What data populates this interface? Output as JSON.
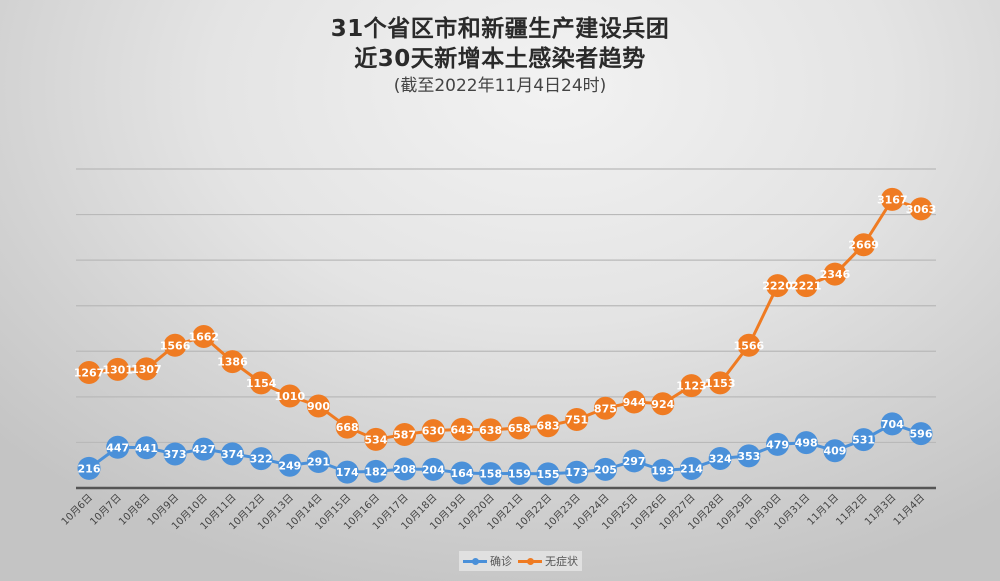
{
  "title": {
    "line1": "31个省区市和新疆生产建设兵团",
    "line2": "近30天新增本土感染者趋势",
    "line3": "(截至2022年11月4日24时)"
  },
  "legend": [
    {
      "name": "确诊",
      "color": "#4a90d9"
    },
    {
      "name": "无症状",
      "color": "#ef7b22"
    }
  ],
  "chart_data": {
    "type": "line",
    "title": "31个省区市和新疆生产建设兵团近30天新增本土感染者趋势",
    "subtitle": "(截至2022年11月4日24时)",
    "xlabel": "",
    "ylabel": "",
    "ylim": [
      0,
      3500
    ],
    "grid": true,
    "gridline_step": 500,
    "y_tick_labels_visible": false,
    "legend_position": "bottom",
    "categories": [
      "10月6日",
      "10月7日",
      "10月8日",
      "10月9日",
      "10月10日",
      "10月11日",
      "10月12日",
      "10月13日",
      "10月14日",
      "10月15日",
      "10月16日",
      "10月17日",
      "10月18日",
      "10月19日",
      "10月20日",
      "10月21日",
      "10月22日",
      "10月23日",
      "10月24日",
      "10月25日",
      "10月26日",
      "10月27日",
      "10月28日",
      "10月29日",
      "10月30日",
      "10月31日",
      "11月1日",
      "11月2日",
      "11月3日",
      "11月4日"
    ],
    "series": [
      {
        "name": "确诊",
        "color": "#4a90d9",
        "values": [
          216,
          447,
          441,
          373,
          427,
          374,
          322,
          249,
          291,
          174,
          182,
          208,
          204,
          164,
          158,
          159,
          155,
          173,
          205,
          297,
          193,
          214,
          324,
          353,
          479,
          498,
          409,
          531,
          704,
          596
        ]
      },
      {
        "name": "无症状",
        "color": "#ef7b22",
        "values": [
          1267,
          1301,
          1307,
          1566,
          1662,
          1386,
          1154,
          1010,
          900,
          668,
          534,
          587,
          630,
          643,
          638,
          658,
          683,
          751,
          875,
          944,
          924,
          1123,
          1153,
          1566,
          2220,
          2221,
          2346,
          2669,
          3167,
          3063
        ]
      }
    ]
  }
}
